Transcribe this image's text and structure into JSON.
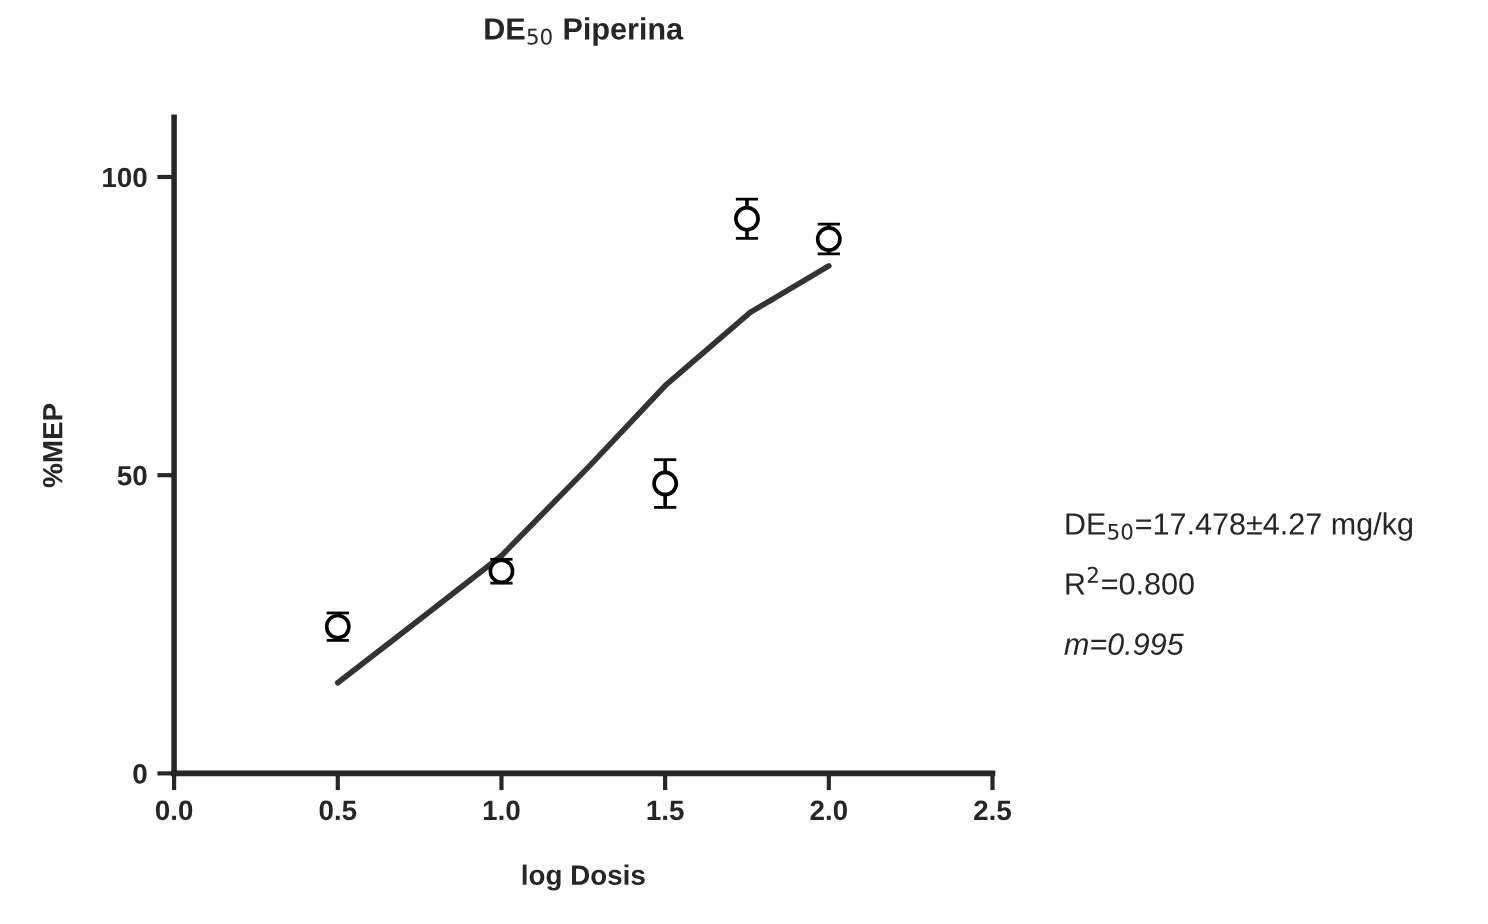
{
  "chart_data": {
    "type": "scatter",
    "title": "DE$_{50}$ Piperina",
    "xlabel": "log Dosis",
    "ylabel": "%MEP",
    "series": [
      {
        "color": "#000000",
        "x": [
          0.5,
          1.0,
          1.5,
          1.75,
          2.0
        ],
        "values": [
          24.6,
          33.9,
          48.6,
          93.0,
          89.6
        ],
        "errors": [
          2.3,
          2.0,
          4.0,
          3.3,
          2.5
        ],
        "marker": "circle"
      },
      {
        "type": "line",
        "color": "#333333",
        "x": [
          0.5,
          0.75,
          1.0,
          1.27,
          1.5,
          1.76,
          2.0
        ],
        "values": [
          15.2,
          25.8,
          36.5,
          51.6,
          65.0,
          77.3,
          85.1
        ],
        "line_style": "solid"
      }
    ],
    "annotations": [
      "DE$_{50}$=17.478±4.27 mg/kg",
      "R$^{2}$=0.800",
      "m=0.995"
    ],
    "xlim": [
      0,
      2.5
    ],
    "xticks": [
      {
        "value": 0,
        "label": "0.0"
      },
      {
        "value": 0.5,
        "label": "0.5"
      },
      {
        "value": 1.0,
        "label": "1.0"
      },
      {
        "value": 1.5,
        "label": "1.5"
      },
      {
        "value": 2.0,
        "label": "2.0"
      },
      {
        "value": 2.5,
        "label": "2.5"
      }
    ],
    "ylim": [
      0,
      110
    ],
    "yticks": [
      0,
      50,
      100
    ],
    "grid": false,
    "legend": false
  }
}
